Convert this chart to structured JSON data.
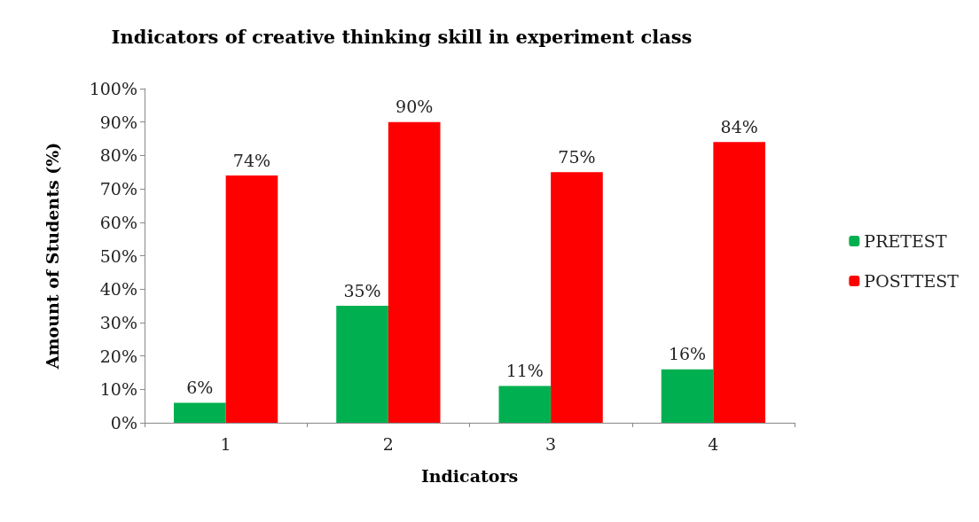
{
  "chart_data": {
    "type": "bar",
    "title": "Indicators of creative thinking skill in experiment class",
    "xlabel": "Indicators",
    "ylabel": "Amount of Students (%)",
    "categories": [
      "1",
      "2",
      "3",
      "4"
    ],
    "series": [
      {
        "name": "PRETEST",
        "color": "#00b050",
        "values": [
          6,
          35,
          11,
          16
        ],
        "value_labels": [
          "6%",
          "35%",
          "11%",
          "16%"
        ]
      },
      {
        "name": "POSTTEST",
        "color": "#ff0000",
        "values": [
          74,
          90,
          75,
          84
        ],
        "value_labels": [
          "74%",
          "90%",
          "75%",
          "84%"
        ]
      }
    ],
    "ylim": [
      0,
      100
    ],
    "yticks": [
      {
        "value": 0,
        "label": "0%"
      },
      {
        "value": 10,
        "label": "10%"
      },
      {
        "value": 20,
        "label": "20%"
      },
      {
        "value": 30,
        "label": "30%"
      },
      {
        "value": 40,
        "label": "40%"
      },
      {
        "value": 50,
        "label": "50%"
      },
      {
        "value": 60,
        "label": "60%"
      },
      {
        "value": 70,
        "label": "70%"
      },
      {
        "value": 80,
        "label": "80%"
      },
      {
        "value": 90,
        "label": "90%"
      },
      {
        "value": 100,
        "label": "100%"
      }
    ],
    "grid": false,
    "legend": "right"
  }
}
